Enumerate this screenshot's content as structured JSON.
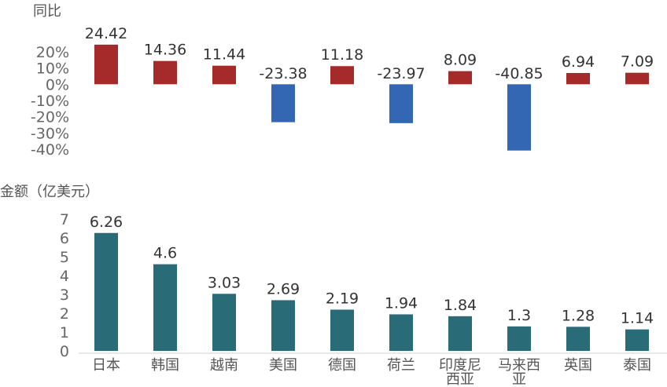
{
  "chart_data": [
    {
      "type": "bar",
      "ylabel": "同比",
      "ylim": [
        -40,
        20
      ],
      "yticks": [
        "20%",
        "10%",
        "0%",
        "-10%",
        "-20%",
        "-30%",
        "-40%"
      ],
      "values": [
        24.42,
        14.36,
        11.44,
        -23.38,
        11.18,
        -23.97,
        8.09,
        -40.85,
        6.94,
        7.09
      ],
      "colors": {
        "positive": "#a52a2a",
        "negative": "#3366b3"
      },
      "grid": false
    },
    {
      "type": "bar",
      "ylabel": "金额（亿美元）",
      "ylim": [
        0,
        7
      ],
      "yticks": [
        "7",
        "6",
        "5",
        "4",
        "3",
        "2",
        "1",
        "0"
      ],
      "categories": [
        [
          "日本"
        ],
        [
          "韩国"
        ],
        [
          "越南"
        ],
        [
          "美国"
        ],
        [
          "德国"
        ],
        [
          "荷兰"
        ],
        [
          "印度尼",
          "西亚"
        ],
        [
          "马来西",
          "亚"
        ],
        [
          "英国"
        ],
        [
          "泰国"
        ]
      ],
      "values": [
        6.26,
        4.6,
        3.03,
        2.69,
        2.19,
        1.94,
        1.84,
        1.3,
        1.28,
        1.14
      ],
      "color": "#2a6b78",
      "grid": false
    }
  ]
}
